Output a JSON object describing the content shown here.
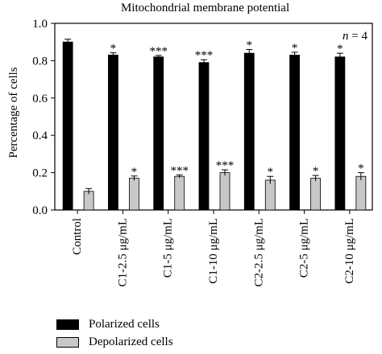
{
  "chart_data": {
    "type": "bar",
    "title": "Mitochondrial membrane potential",
    "ylabel": "Percentage of cells",
    "xlabel": "",
    "annotation": "n = 4",
    "annotation_parts": {
      "var": "n",
      "rest": " = 4"
    },
    "ylim": [
      0,
      1.0
    ],
    "yticks": [
      "0.0",
      "0.2",
      "0.4",
      "0.6",
      "0.8",
      "1.0"
    ],
    "ytick_values": [
      0,
      0.2,
      0.4,
      0.6,
      0.8,
      1.0
    ],
    "categories": [
      "Control",
      "C1-2.5 μg/mL",
      "C1-5 μg/mL",
      "C1-10 μg/mL",
      "C2-2.5 μg/mL",
      "C2-5 μg/mL",
      "C2-10 μg/mL"
    ],
    "series": [
      {
        "name": "Polarized cells",
        "color": "#000000",
        "values": [
          0.9,
          0.83,
          0.82,
          0.79,
          0.84,
          0.83,
          0.82
        ],
        "errors": [
          0.015,
          0.012,
          0.008,
          0.015,
          0.02,
          0.015,
          0.02
        ],
        "significance": [
          "",
          "*",
          "***",
          "***",
          "*",
          "*",
          "*"
        ]
      },
      {
        "name": "Depolarized cells",
        "color": "#c8c8c8",
        "values": [
          0.1,
          0.17,
          0.18,
          0.2,
          0.16,
          0.17,
          0.18
        ],
        "errors": [
          0.015,
          0.012,
          0.008,
          0.015,
          0.02,
          0.015,
          0.02
        ],
        "significance": [
          "",
          "*",
          "***",
          "***",
          "*",
          "*",
          "*"
        ]
      }
    ],
    "legend": {
      "placement": "bottom-left"
    }
  }
}
